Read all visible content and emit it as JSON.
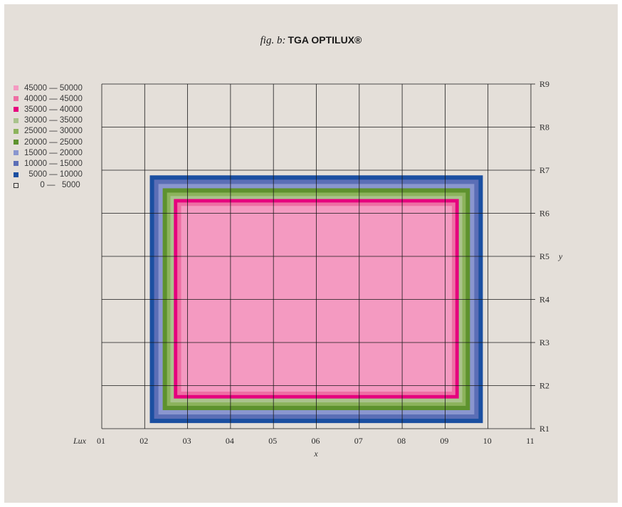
{
  "title": {
    "prefix": "fig. b:",
    "name": "TGA OPTILUX®"
  },
  "chart_data": {
    "type": "heatmap",
    "title": "fig. b: TGA OPTILUX®",
    "unit_label": "Lux",
    "xlabel": "x",
    "ylabel": "y",
    "x_ticks": [
      "01",
      "02",
      "03",
      "04",
      "05",
      "06",
      "07",
      "08",
      "09",
      "10",
      "11"
    ],
    "y_ticks": [
      "R1",
      "R2",
      "R3",
      "R4",
      "R5",
      "R6",
      "R7",
      "R8",
      "R9"
    ],
    "x_range": [
      1,
      11
    ],
    "y_range": [
      1,
      9
    ],
    "grid": true,
    "legend_position": "left",
    "legend": [
      {
        "label": "45000 — 50000",
        "color": "#f49ac1"
      },
      {
        "label": "40000 — 45000",
        "color": "#ee6fa4"
      },
      {
        "label": "35000 — 40000",
        "color": "#e6007e"
      },
      {
        "label": "30000 — 35000",
        "color": "#a9c38c"
      },
      {
        "label": "25000 — 30000",
        "color": "#8cb35c"
      },
      {
        "label": "20000 — 25000",
        "color": "#5e922e"
      },
      {
        "label": "15000 — 20000",
        "color": "#8a96cf"
      },
      {
        "label": "10000 — 15000",
        "color": "#5b6eb6"
      },
      {
        "label": "  5000 — 10000",
        "color": "#1b4fa1"
      },
      {
        "label": "       0 —   5000",
        "color": "none"
      }
    ],
    "zones": [
      {
        "range": "5000 — 10000",
        "color": "#1b4fa1",
        "x": [
          2.12,
          9.88
        ],
        "y": [
          1.13,
          6.88
        ]
      },
      {
        "range": "10000 — 15000",
        "color": "#5b6eb6",
        "x": [
          2.22,
          9.78
        ],
        "y": [
          1.23,
          6.78
        ]
      },
      {
        "range": "15000 — 20000",
        "color": "#8a96cf",
        "x": [
          2.32,
          9.68
        ],
        "y": [
          1.33,
          6.68
        ]
      },
      {
        "range": "20000 — 25000",
        "color": "#5e922e",
        "x": [
          2.42,
          9.58
        ],
        "y": [
          1.43,
          6.58
        ]
      },
      {
        "range": "25000 — 30000",
        "color": "#8cb35c",
        "x": [
          2.52,
          9.48
        ],
        "y": [
          1.53,
          6.48
        ]
      },
      {
        "range": "30000 — 35000",
        "color": "#a9c38c",
        "x": [
          2.6,
          9.4
        ],
        "y": [
          1.61,
          6.4
        ]
      },
      {
        "range": "35000 — 40000",
        "color": "#e6007e",
        "x": [
          2.68,
          9.32
        ],
        "y": [
          1.7,
          6.33
        ]
      },
      {
        "range": "40000 — 45000",
        "color": "#ee6fa4",
        "x": [
          2.76,
          9.24
        ],
        "y": [
          1.78,
          6.25
        ]
      },
      {
        "range": "45000 — 50000",
        "color": "#f49ac1",
        "x": [
          2.85,
          9.16
        ],
        "y": [
          1.86,
          6.17
        ]
      }
    ]
  }
}
